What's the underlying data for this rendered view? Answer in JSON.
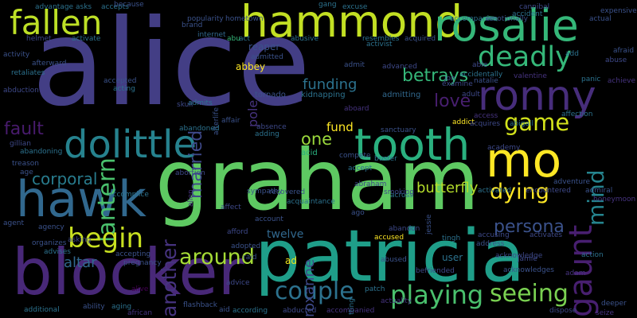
{
  "palette": {
    "background": "#000000",
    "deep_purple": "#440154",
    "indigo": "#3b528b",
    "slate_blue": "#31688e",
    "teal": "#21918c",
    "sea_green": "#27ad81",
    "green": "#5ec962",
    "yellow_green": "#aadc32",
    "yellow": "#fde725"
  },
  "words": [
    {
      "text": "alice",
      "color": "#433e85"
    },
    {
      "text": "graham",
      "color": "#5ec962"
    },
    {
      "text": "patricia",
      "color": "#1f9e89"
    },
    {
      "text": "blocker",
      "color": "#482878"
    },
    {
      "text": "hammond",
      "color": "#c2df23"
    },
    {
      "text": "rosalie",
      "color": "#35b779"
    },
    {
      "text": "tooth",
      "color": "#2ab07f"
    },
    {
      "text": "dolittle",
      "color": "#26828e"
    },
    {
      "text": "hawk",
      "color": "#31688e"
    },
    {
      "text": "mo",
      "color": "#fde725"
    },
    {
      "text": "ronny",
      "color": "#472d7b"
    },
    {
      "text": "fallen",
      "color": "#bddf26"
    },
    {
      "text": "deadly",
      "color": "#35b779"
    },
    {
      "text": "lantern",
      "color": "#4ac16d"
    },
    {
      "text": "married",
      "color": "#3e4989"
    },
    {
      "text": "gaunt",
      "color": "#481f70"
    },
    {
      "text": "playing",
      "color": "#4ac16d"
    },
    {
      "text": "seeing",
      "color": "#7ad151"
    },
    {
      "text": "couple",
      "color": "#2c728e"
    },
    {
      "text": "begin",
      "color": "#c8e020"
    },
    {
      "text": "another",
      "color": "#46337f"
    },
    {
      "text": "around",
      "color": "#a5db36"
    },
    {
      "text": "game",
      "color": "#d2e21b"
    },
    {
      "text": "dying",
      "color": "#fde725"
    },
    {
      "text": "mind",
      "color": "#25848e"
    },
    {
      "text": "fault",
      "color": "#481b6d"
    },
    {
      "text": "persona",
      "color": "#3b528b"
    },
    {
      "text": "corporal",
      "color": "#287c8e"
    },
    {
      "text": "betrays",
      "color": "#35b779"
    },
    {
      "text": "love",
      "color": "#481f70"
    },
    {
      "text": "one",
      "color": "#9bd93c"
    },
    {
      "text": "funding",
      "color": "#2c728e"
    },
    {
      "text": "butterfly",
      "color": "#b5de2b"
    },
    {
      "text": "altar",
      "color": "#31688e"
    },
    {
      "text": "fund",
      "color": "#fde725"
    },
    {
      "text": "roxanne",
      "color": "#3e4989"
    },
    {
      "text": "twelve",
      "color": "#31688e"
    },
    {
      "text": "reaper",
      "color": "#3b528b"
    },
    {
      "text": "user",
      "color": "#2c728e"
    },
    {
      "text": "acid",
      "color": "#2ab07f"
    },
    {
      "text": "pole",
      "color": "#46337f"
    },
    {
      "text": "abbey",
      "color": "#fde725"
    },
    {
      "text": "ad",
      "color": "#efe51c"
    },
    {
      "text": "tornado",
      "color": "#3b528b"
    },
    {
      "text": "admitting",
      "color": "#31688e"
    },
    {
      "text": "kidnapping",
      "color": "#2c728e"
    },
    {
      "text": "internet",
      "color": "#31688e"
    },
    {
      "text": "admitted",
      "color": "#3b528b"
    },
    {
      "text": "skull",
      "color": "#3e4989"
    },
    {
      "text": "afterlife",
      "color": "#3b528b"
    },
    {
      "text": "admits",
      "color": "#2c728e"
    },
    {
      "text": "act",
      "color": "#2c728e"
    },
    {
      "text": "abu",
      "color": "#35b779"
    },
    {
      "text": "abusive",
      "color": "#2c728e"
    },
    {
      "text": "activist",
      "color": "#2c728e"
    },
    {
      "text": "acquired",
      "color": "#3b528b"
    },
    {
      "text": "resembles",
      "color": "#2c728e"
    },
    {
      "text": "advanced",
      "color": "#3e4989"
    },
    {
      "text": "afraid",
      "color": "#3b528b"
    },
    {
      "text": "abuse",
      "color": "#3e4989"
    },
    {
      "text": "achieve",
      "color": "#46337f"
    },
    {
      "text": "panic",
      "color": "#2c728e"
    },
    {
      "text": "affection",
      "color": "#2c728e"
    },
    {
      "text": "examine",
      "color": "#3e4989"
    },
    {
      "text": "natalie",
      "color": "#3b528b"
    },
    {
      "text": "valentine",
      "color": "#46337f"
    },
    {
      "text": "adult",
      "color": "#3e4989"
    },
    {
      "text": "addict",
      "color": "#fde725"
    },
    {
      "text": "access",
      "color": "#46337f"
    },
    {
      "text": "acquires",
      "color": "#3e4989"
    },
    {
      "text": "abigail",
      "color": "#2c728e"
    },
    {
      "text": "adventure",
      "color": "#3b528b"
    },
    {
      "text": "admiral",
      "color": "#3b528b"
    },
    {
      "text": "encountered",
      "color": "#3e4989"
    },
    {
      "text": "activated",
      "color": "#2c728e"
    },
    {
      "text": "honeymoon",
      "color": "#46337f"
    },
    {
      "text": "adopted",
      "color": "#3b528b"
    },
    {
      "text": "account",
      "color": "#3b528b"
    },
    {
      "text": "afford",
      "color": "#3e4989"
    },
    {
      "text": "accused",
      "color": "#fde725"
    },
    {
      "text": "abandon",
      "color": "#3e4989"
    },
    {
      "text": "tingh",
      "color": "#2c728e"
    },
    {
      "text": "accusing",
      "color": "#3e4989"
    },
    {
      "text": "activates",
      "color": "#3e4989"
    },
    {
      "text": "address",
      "color": "#3b528b"
    },
    {
      "text": "action",
      "color": "#2c728e"
    },
    {
      "text": "jamie",
      "color": "#3e4989"
    },
    {
      "text": "acknowledges",
      "color": "#3b528b"
    },
    {
      "text": "adam",
      "color": "#46337f"
    },
    {
      "text": "abused",
      "color": "#3b528b"
    },
    {
      "text": "befriended",
      "color": "#3e4989"
    },
    {
      "text": "patch",
      "color": "#2c728e"
    },
    {
      "text": "actuality",
      "color": "#46337f"
    },
    {
      "text": "accompanied",
      "color": "#46337f"
    },
    {
      "text": "abducted",
      "color": "#3e4989"
    },
    {
      "text": "deeper",
      "color": "#3b528b"
    },
    {
      "text": "dispose",
      "color": "#3e4989"
    },
    {
      "text": "seize",
      "color": "#46337f"
    },
    {
      "text": "according",
      "color": "#2c728e"
    },
    {
      "text": "flashback",
      "color": "#3b528b"
    },
    {
      "text": "advice",
      "color": "#3e4989"
    },
    {
      "text": "aging",
      "color": "#2c728e"
    },
    {
      "text": "ability",
      "color": "#3b528b"
    },
    {
      "text": "additional",
      "color": "#2c728e"
    },
    {
      "text": "pregnancy",
      "color": "#3b528b"
    },
    {
      "text": "accepting",
      "color": "#3b528b"
    },
    {
      "text": "advises",
      "color": "#2c728e"
    },
    {
      "text": "organizes",
      "color": "#3b528b"
    },
    {
      "text": "asking",
      "color": "#3e4989"
    },
    {
      "text": "agency",
      "color": "#3b528b"
    },
    {
      "text": "agent",
      "color": "#3b528b"
    },
    {
      "text": "accomplice",
      "color": "#2c728e"
    },
    {
      "text": "abortion",
      "color": "#3e4989"
    },
    {
      "text": "sympathy",
      "color": "#3b528b"
    },
    {
      "text": "acquaintance",
      "color": "#2c728e"
    },
    {
      "text": "accept",
      "color": "#2c728e"
    },
    {
      "text": "across",
      "color": "#2c728e"
    },
    {
      "text": "recovered",
      "color": "#3b528b"
    },
    {
      "text": "smoking",
      "color": "#3e4989"
    },
    {
      "text": "affect",
      "color": "#3e4989"
    },
    {
      "text": "abandoning",
      "color": "#2c728e"
    },
    {
      "text": "treason",
      "color": "#3b528b"
    },
    {
      "text": "age",
      "color": "#3b528b"
    },
    {
      "text": "gillian",
      "color": "#3e4989"
    },
    {
      "text": "abandoned",
      "color": "#2c728e"
    },
    {
      "text": "affair",
      "color": "#3b528b"
    },
    {
      "text": "absence",
      "color": "#3e4989"
    },
    {
      "text": "adding",
      "color": "#2c728e"
    },
    {
      "text": "aboard",
      "color": "#46337f"
    },
    {
      "text": "sanctuary",
      "color": "#3b528b"
    },
    {
      "text": "academy",
      "color": "#3e4989"
    },
    {
      "text": "accepted",
      "color": "#3b528b"
    },
    {
      "text": "acting",
      "color": "#2c728e"
    },
    {
      "text": "afterward",
      "color": "#3b528b"
    },
    {
      "text": "activity",
      "color": "#3b528b"
    },
    {
      "text": "retaliates",
      "color": "#2c728e"
    },
    {
      "text": "abduction",
      "color": "#3e4989"
    },
    {
      "text": "activate",
      "color": "#2c728e"
    },
    {
      "text": "helmet",
      "color": "#3e4989"
    },
    {
      "text": "popularity",
      "color": "#3b528b"
    },
    {
      "text": "hometown",
      "color": "#3b528b"
    },
    {
      "text": "accepts",
      "color": "#2c728e"
    },
    {
      "text": "asks",
      "color": "#2c728e"
    },
    {
      "text": "because",
      "color": "#3b528b"
    },
    {
      "text": "advantage",
      "color": "#2c728e"
    },
    {
      "text": "excuse",
      "color": "#2c728e"
    },
    {
      "text": "accompanies",
      "color": "#2c728e"
    },
    {
      "text": "emotionally",
      "color": "#3b528b"
    },
    {
      "text": "cannibal",
      "color": "#3e4989"
    },
    {
      "text": "accident",
      "color": "#2c728e"
    },
    {
      "text": "actual",
      "color": "#3b528b"
    },
    {
      "text": "expensive",
      "color": "#3b528b"
    },
    {
      "text": "able",
      "color": "#3e4989"
    },
    {
      "text": "accidentally",
      "color": "#2c728e"
    },
    {
      "text": "admit",
      "color": "#3b528b"
    },
    {
      "text": "jon",
      "color": "#3e4989"
    },
    {
      "text": "compete",
      "color": "#3b528b"
    },
    {
      "text": "buster",
      "color": "#2c728e"
    },
    {
      "text": "ago",
      "color": "#3b528b"
    },
    {
      "text": "acknowledge",
      "color": "#3e4989"
    },
    {
      "text": "aid",
      "color": "#3b528b"
    },
    {
      "text": "raid",
      "color": "#3b528b"
    },
    {
      "text": "alien",
      "color": "#46337f"
    },
    {
      "text": "brand",
      "color": "#3b528b"
    },
    {
      "text": "alive",
      "color": "#440154"
    },
    {
      "text": "gang",
      "color": "#2c728e"
    },
    {
      "text": "abraham",
      "color": "#3e4989"
    },
    {
      "text": "jessie",
      "color": "#3b528b"
    },
    {
      "text": "african",
      "color": "#46337f"
    },
    {
      "text": "tting",
      "color": "#2c728e"
    },
    {
      "text": "add",
      "color": "#2c728e"
    }
  ]
}
